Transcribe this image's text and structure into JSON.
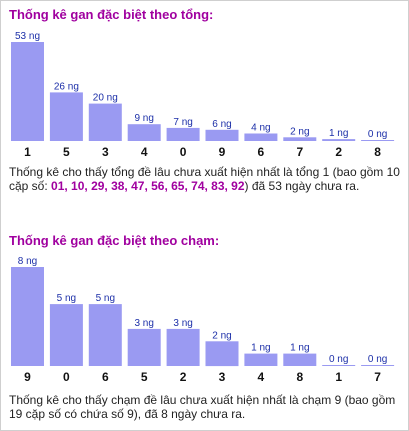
{
  "charts": [
    {
      "title": "Thống kê gan đặc biệt theo tổng:",
      "summary": {
        "prefix": "Thống kê cho thấy tổng đề lâu chưa xuất hiện nhất là tổng 1 (bao gồm 10 cặp số: ",
        "highlight": "01, 10, 29, 38, 47, 56, 65, 74, 83, 92",
        "suffix": ") đã 53 ngày chưa ra."
      }
    },
    {
      "title": "Thống kê gan đặc biệt theo chạm:",
      "summary": {
        "prefix": "Thống kê cho thấy chạm đề lâu chưa xuất hiện nhất là chạm 9 (bao gồm 19 cặp số có chứa số 9), đã 8 ngày chưa ra.",
        "highlight": "",
        "suffix": ""
      }
    }
  ],
  "chart_data": [
    {
      "type": "bar",
      "title": "Thống kê gan đặc biệt theo tổng:",
      "categories": [
        "1",
        "5",
        "3",
        "4",
        "0",
        "9",
        "6",
        "7",
        "2",
        "8"
      ],
      "values": [
        53,
        26,
        20,
        9,
        7,
        6,
        4,
        2,
        1,
        0
      ],
      "data_labels": [
        "53 ng",
        "26 ng",
        "20 ng",
        "9 ng",
        "7 ng",
        "6 ng",
        "4 ng",
        "2 ng",
        "1 ng",
        "0 ng"
      ],
      "ylim": [
        0,
        53
      ],
      "bar_color": "#9a9af2",
      "grid": false,
      "legend": "none"
    },
    {
      "type": "bar",
      "title": "Thống kê gan đặc biệt theo chạm:",
      "categories": [
        "9",
        "0",
        "6",
        "5",
        "2",
        "3",
        "4",
        "8",
        "1",
        "7"
      ],
      "values": [
        8,
        5,
        5,
        3,
        3,
        2,
        1,
        1,
        0,
        0
      ],
      "data_labels": [
        "8 ng",
        "5 ng",
        "5 ng",
        "3 ng",
        "3 ng",
        "2 ng",
        "1 ng",
        "1 ng",
        "0 ng",
        "0 ng"
      ],
      "ylim": [
        0,
        8
      ],
      "bar_color": "#9a9af2",
      "grid": false,
      "legend": "none"
    }
  ]
}
